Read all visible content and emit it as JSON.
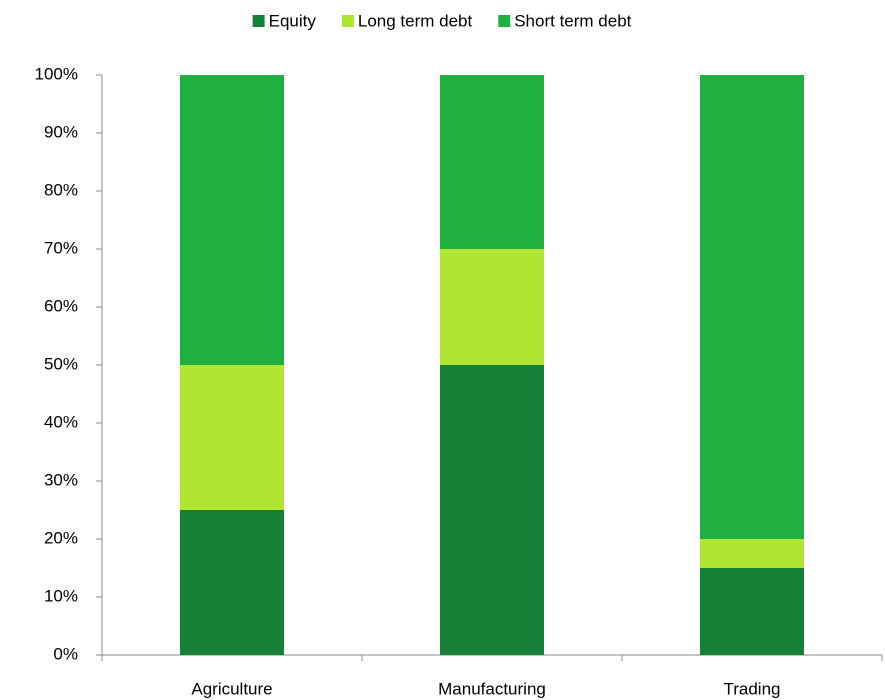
{
  "chart_data": {
    "type": "stacked_bar",
    "categories": [
      "Agriculture",
      "Manufacturing",
      "Trading"
    ],
    "series": [
      {
        "name": "Equity",
        "color": "#157f35",
        "values": [
          25,
          50,
          15
        ]
      },
      {
        "name": "Long term debt",
        "color": "#b0e534",
        "values": [
          25,
          20,
          5
        ]
      },
      {
        "name": "Short term debt",
        "color": "#1fb040",
        "values": [
          50,
          30,
          80
        ]
      }
    ],
    "ylim": [
      0,
      100
    ],
    "yticks": [
      {
        "value": 0,
        "label": "0%"
      },
      {
        "value": 10,
        "label": "10%"
      },
      {
        "value": 20,
        "label": "20%"
      },
      {
        "value": 30,
        "label": "30%"
      },
      {
        "value": 40,
        "label": "40%"
      },
      {
        "value": 50,
        "label": "50%"
      },
      {
        "value": 60,
        "label": "60%"
      },
      {
        "value": 70,
        "label": "70%"
      },
      {
        "value": 80,
        "label": "80%"
      },
      {
        "value": 90,
        "label": "90%"
      },
      {
        "value": 100,
        "label": "100%"
      }
    ],
    "legend": "top",
    "grid": false
  }
}
